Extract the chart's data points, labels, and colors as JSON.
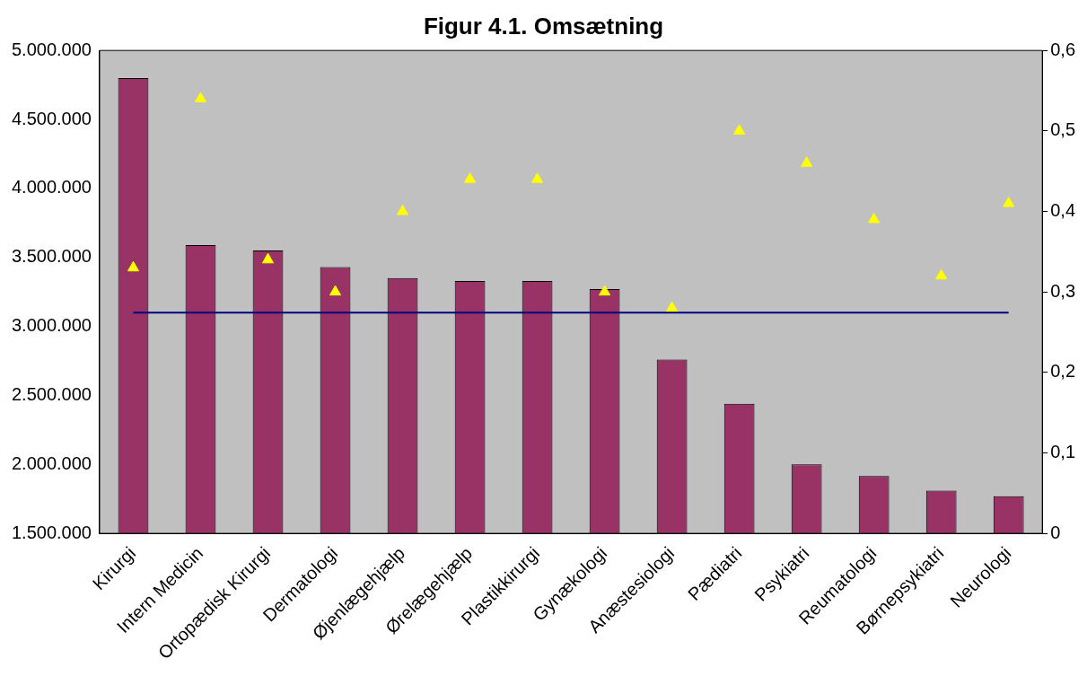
{
  "chart_data": {
    "type": "bar",
    "title": "Figur 4.1. Omsætning",
    "categories": [
      "Kirurgi",
      "Intern Medicin",
      "Ortopædisk Kirurgi",
      "Dermatologi",
      "Øjenlægehjælp",
      "Ørelægehjælp",
      "Plastikkirurgi",
      "Gynækologi",
      "Anæstesiologi",
      "Pædiatri",
      "Psykiatri",
      "Reumatologi",
      "Børnepsykiatri",
      "Neurologi"
    ],
    "series": [
      {
        "color": "#993366",
        "values": [
          4800000,
          3590000,
          3550000,
          3430000,
          3350000,
          3330000,
          3330000,
          3270000,
          2760000,
          2440000,
          2000000,
          1915000,
          1810000,
          1770000
        ]
      },
      {
        "type": "line",
        "color": "#000080",
        "values": [
          3100000,
          3100000,
          3100000,
          3100000,
          3100000,
          3100000,
          3100000,
          3100000,
          3100000,
          3100000,
          3100000,
          3100000,
          3100000,
          3100000
        ]
      },
      {
        "type": "scatter",
        "axis": "y2",
        "color": "#ffff00",
        "marker": "triangle",
        "values": [
          0.33,
          0.54,
          0.34,
          0.3,
          0.4,
          0.44,
          0.44,
          0.3,
          0.28,
          0.5,
          0.46,
          0.39,
          0.32,
          0.41
        ]
      }
    ],
    "ylim": [
      1500000,
      5000000
    ],
    "yticks": [
      {
        "value": 1500000,
        "label": "1.500.000"
      },
      {
        "value": 2000000,
        "label": "2.000.000"
      },
      {
        "value": 2500000,
        "label": "2.500.000"
      },
      {
        "value": 3000000,
        "label": "3.000.000"
      },
      {
        "value": 3500000,
        "label": "3.500.000"
      },
      {
        "value": 4000000,
        "label": "4.000.000"
      },
      {
        "value": 4500000,
        "label": "4.500.000"
      },
      {
        "value": 5000000,
        "label": "5.000.000"
      }
    ],
    "y2lim": [
      0,
      0.6
    ],
    "y2ticks": [
      0,
      {
        "value": 0.1,
        "label": "0,1"
      },
      {
        "value": 0.2,
        "label": "0,2"
      },
      {
        "value": 0.3,
        "label": "0,3"
      },
      {
        "value": 0.4,
        "label": "0,4"
      },
      {
        "value": 0.5,
        "label": "0,5"
      },
      {
        "value": 0.6,
        "label": "0,6"
      }
    ],
    "grid": false,
    "legend": false
  }
}
